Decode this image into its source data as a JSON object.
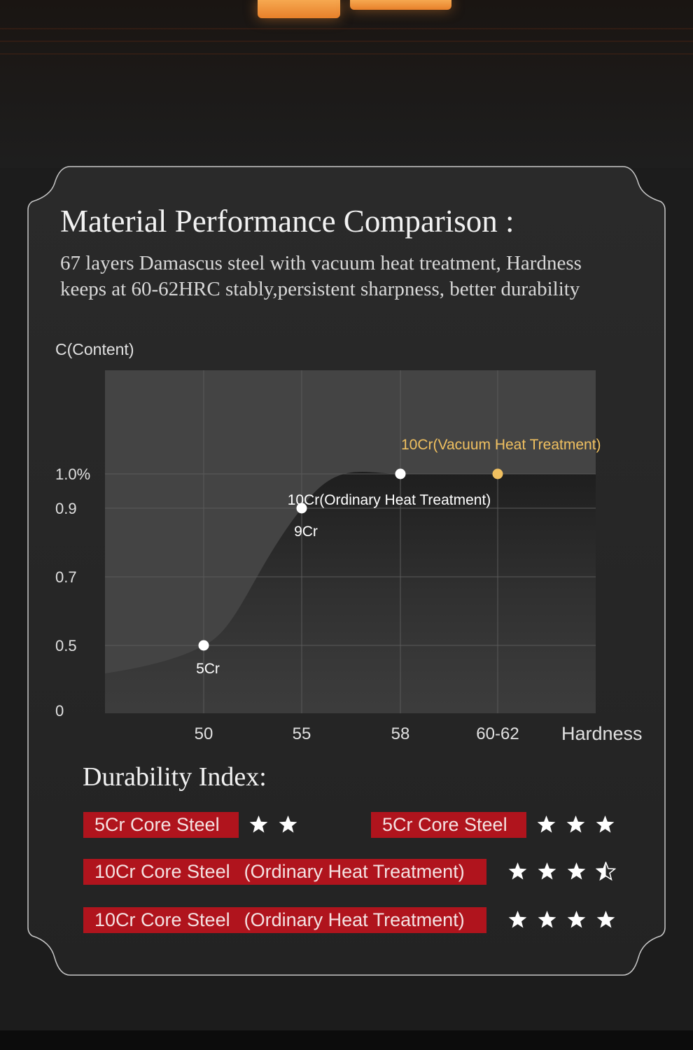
{
  "colors": {
    "accent_red": "#b0141d",
    "highlight_gold": "#f0c060",
    "background": "#1c1c1c"
  },
  "header": {
    "title": "Material Performance Comparison :",
    "subtitle_lines": [
      "67 layers Damascus steel with vacuum heat treatment, Hardness",
      "keeps at 60-62HRC stably,persistent sharpness, better durability"
    ]
  },
  "chart_data": {
    "type": "line",
    "ylabel": "C(Content)",
    "xlabel": "Hardness",
    "x_tick_labels": [
      "50",
      "55",
      "58",
      "60-62"
    ],
    "y_tick_labels": [
      "0",
      "0.5",
      "0.7",
      "0.9",
      "1.0%"
    ],
    "grid": true,
    "points": [
      {
        "x": "50",
        "y": 0.5,
        "label": "5Cr",
        "highlight": false
      },
      {
        "x": "55",
        "y": 0.9,
        "label": "9Cr",
        "highlight": false
      },
      {
        "x": "58",
        "y": 1.0,
        "label": "10Cr(Ordinary Heat Treatment)",
        "highlight": false
      },
      {
        "x": "60-62",
        "y": 1.0,
        "label": "10Cr(Vacuum Heat Treatment)",
        "highlight": true
      }
    ]
  },
  "durability": {
    "title": "Durability Index:",
    "rows": [
      {
        "name": "5Cr Core Steel",
        "detail": "",
        "stars": 2
      },
      {
        "name": "5Cr Core Steel",
        "detail": "",
        "stars": 3
      },
      {
        "name": "10Cr Core Steel",
        "detail": "(Ordinary Heat Treatment)",
        "stars": 3.5
      },
      {
        "name": "10Cr Core Steel",
        "detail": "(Ordinary Heat Treatment)",
        "stars": 4
      }
    ]
  }
}
